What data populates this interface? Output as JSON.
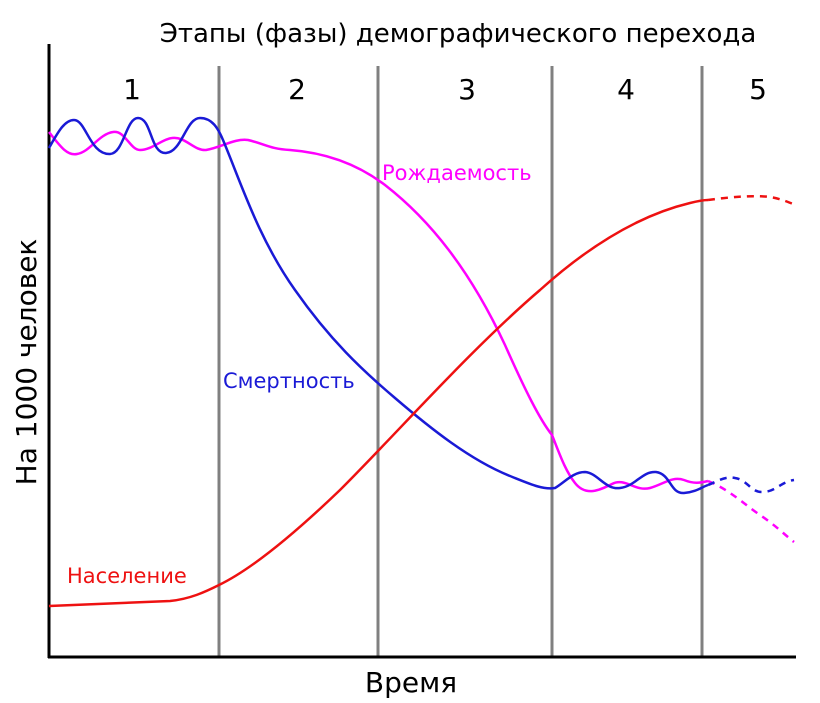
{
  "chart_data": {
    "type": "line",
    "title": "Этапы (фазы) демографического перехода",
    "xlabel": "Время",
    "ylabel": "На 1000 человек",
    "phases": [
      "1",
      "2",
      "3",
      "4",
      "5"
    ],
    "grid": false,
    "series": [
      {
        "name": "Рождаемость",
        "color": "#ff00ff",
        "style": "solid-then-dashed"
      },
      {
        "name": "Смертность",
        "color": "#1a1ad6",
        "style": "solid-then-dashed"
      },
      {
        "name": "Население",
        "color": "#ee1111",
        "style": "solid-then-dashed"
      }
    ]
  },
  "colors": {
    "axis": "#000000",
    "phase_divider": "#808080"
  }
}
